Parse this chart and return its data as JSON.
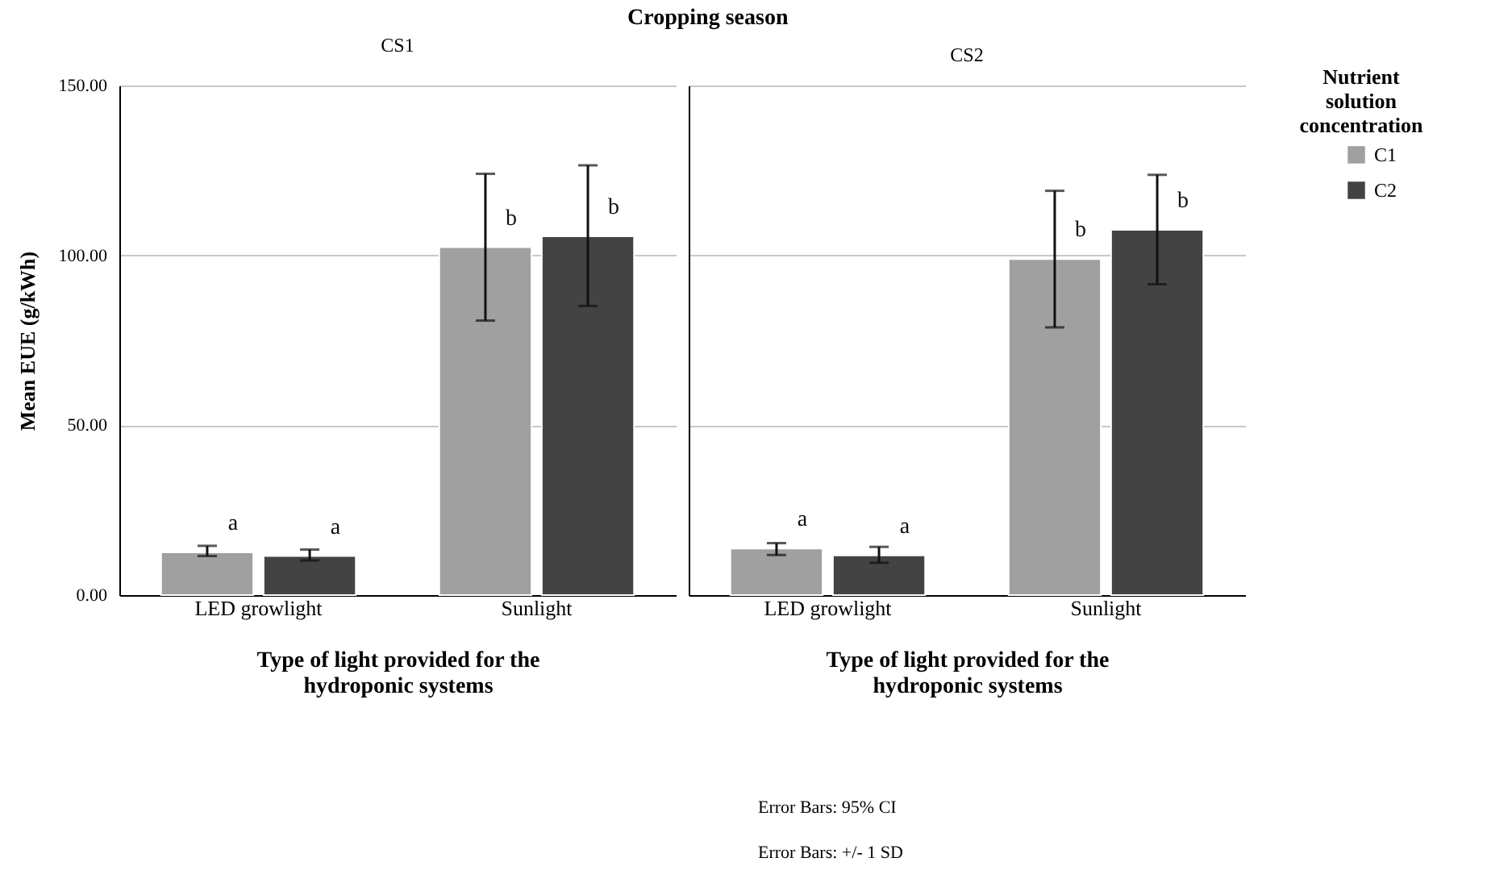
{
  "chart_data": [
    {
      "type": "bar",
      "title": "Cropping season",
      "subtitle": "CS1",
      "xlabel": "Type of light provided for the hydroponic systems",
      "ylabel": "Mean EUE (g/kWh)",
      "categories": [
        "LED growlight",
        "Sunlight"
      ],
      "series": [
        {
          "name": "C1",
          "color": "#a0a0a0",
          "values": [
            12.6,
            102.4
          ],
          "errors": [
            [
              11.5,
              14.5
            ],
            [
              80.8,
              124.0
            ]
          ]
        },
        {
          "name": "C2",
          "color": "#434343",
          "values": [
            11.5,
            105.6
          ],
          "errors": [
            [
              10.2,
              13.4
            ],
            [
              85.1,
              126.5
            ]
          ]
        }
      ],
      "ylim": [
        0,
        150
      ],
      "yticks": [
        {
          "value": 0,
          "label": "0.00"
        },
        {
          "value": 50,
          "label": "50.00"
        },
        {
          "value": 100,
          "label": "100.00"
        },
        {
          "value": 150,
          "label": "150.00"
        }
      ],
      "grid": "y",
      "legend": "top right",
      "annotations": [
        "a",
        "a",
        "b",
        "b"
      ]
    },
    {
      "type": "bar",
      "subtitle": "CS2",
      "xlabel": "Type of light provided for the hydroponic systems",
      "categories": [
        "LED growlight",
        "Sunlight"
      ],
      "series": [
        {
          "name": "C1",
          "color": "#a0a0a0",
          "values": [
            13.7,
            98.9
          ],
          "errors": [
            [
              11.8,
              15.3
            ],
            [
              78.8,
              119.0
            ]
          ]
        },
        {
          "name": "C2",
          "color": "#434343",
          "values": [
            11.7,
            107.5
          ],
          "errors": [
            [
              9.5,
              14.2
            ],
            [
              91.5,
              123.7
            ]
          ]
        }
      ],
      "ylim": [
        0,
        150
      ],
      "yticks": [
        0,
        50,
        100,
        150
      ],
      "grid": "y",
      "tick_labels": "x",
      "legend": "top right",
      "legend_title": "Nutrient solution concentration",
      "annotations": [
        "a",
        "a",
        "b",
        "b",
        "Error Bars: 95% CI",
        "Error Bars: +/- 1 SD"
      ]
    }
  ]
}
